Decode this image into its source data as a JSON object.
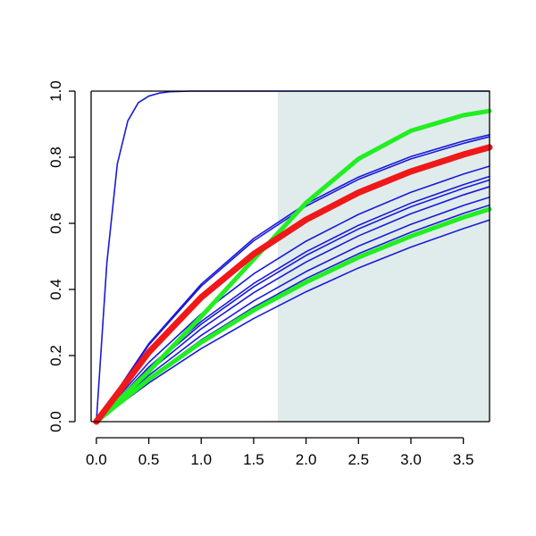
{
  "chart_data": {
    "type": "line",
    "title": "",
    "xlabel": "",
    "ylabel": "",
    "xlim": [
      -0.05,
      3.75
    ],
    "ylim": [
      0.0,
      1.0
    ],
    "x_ticks": [
      0.0,
      0.5,
      1.0,
      1.5,
      2.0,
      2.5,
      3.0,
      3.5
    ],
    "x_tick_labels": [
      "0.0",
      "0.5",
      "1.0",
      "1.5",
      "2.0",
      "2.5",
      "3.0",
      "3.5"
    ],
    "y_ticks": [
      0.0,
      0.2,
      0.4,
      0.6,
      0.8,
      1.0
    ],
    "y_tick_labels": [
      "0.0",
      "0.2",
      "0.4",
      "0.6",
      "0.8",
      "1.0"
    ],
    "grid": false,
    "shaded_region": {
      "x_from": 1.73,
      "x_to": 3.75,
      "color": "#e0ecec"
    },
    "colors": {
      "blue": "#1a1ad6",
      "red": "#f01818",
      "green": "#22ee22"
    },
    "series": [
      {
        "color": "blue",
        "kind": "thin",
        "x": [
          0,
          0.1,
          0.2,
          0.3,
          0.4,
          0.5,
          0.6,
          0.7,
          0.8,
          0.9,
          1.0,
          1.2,
          1.5,
          2.0,
          3.0,
          3.75
        ],
        "y": [
          0.0,
          0.48,
          0.78,
          0.91,
          0.965,
          0.985,
          0.994,
          0.998,
          0.999,
          1.0,
          1.0,
          1.0,
          1.0,
          1.0,
          1.0,
          1.0
        ]
      },
      {
        "color": "blue",
        "kind": "thin",
        "x": [
          0,
          0.5,
          1.0,
          1.5,
          2.0,
          2.5,
          3.0,
          3.5,
          3.75
        ],
        "y": [
          0.0,
          0.179,
          0.326,
          0.447,
          0.546,
          0.627,
          0.694,
          0.749,
          0.773
        ]
      },
      {
        "color": "blue",
        "kind": "thin",
        "x": [
          0,
          0.5,
          1.0,
          1.5,
          2.0,
          2.5,
          3.0,
          3.5,
          3.75
        ],
        "y": [
          0.0,
          0.21,
          0.376,
          0.507,
          0.611,
          0.693,
          0.757,
          0.808,
          0.83
        ]
      },
      {
        "color": "blue",
        "kind": "thin",
        "x": [
          0,
          0.5,
          1.0,
          1.5,
          2.0,
          2.5,
          3.0,
          3.5,
          3.75
        ],
        "y": [
          0.0,
          0.232,
          0.41,
          0.547,
          0.652,
          0.733,
          0.795,
          0.842,
          0.862
        ]
      },
      {
        "color": "blue",
        "kind": "thin",
        "x": [
          0,
          0.5,
          1.0,
          1.5,
          2.0,
          2.5,
          3.0,
          3.5,
          3.75
        ],
        "y": [
          0.0,
          0.236,
          0.416,
          0.554,
          0.659,
          0.74,
          0.802,
          0.849,
          0.868
        ]
      },
      {
        "color": "blue",
        "kind": "thin",
        "x": [
          0,
          0.5,
          1.0,
          1.5,
          2.0,
          2.5,
          3.0,
          3.5,
          3.75
        ],
        "y": [
          0.0,
          0.16,
          0.295,
          0.408,
          0.503,
          0.583,
          0.65,
          0.706,
          0.731
        ]
      },
      {
        "color": "blue",
        "kind": "thin",
        "x": [
          0,
          0.5,
          1.0,
          1.5,
          2.0,
          2.5,
          3.0,
          3.5,
          3.75
        ],
        "y": [
          0.0,
          0.165,
          0.303,
          0.418,
          0.514,
          0.594,
          0.661,
          0.717,
          0.742
        ]
      },
      {
        "color": "blue",
        "kind": "thin",
        "x": [
          0,
          0.5,
          1.0,
          1.5,
          2.0,
          2.5,
          3.0,
          3.5,
          3.75
        ],
        "y": [
          0.0,
          0.152,
          0.281,
          0.39,
          0.483,
          0.562,
          0.629,
          0.686,
          0.711
        ]
      },
      {
        "color": "blue",
        "kind": "thin",
        "x": [
          0,
          0.5,
          1.0,
          1.5,
          2.0,
          2.5,
          3.0,
          3.5,
          3.75
        ],
        "y": [
          0.0,
          0.14,
          0.261,
          0.365,
          0.454,
          0.531,
          0.597,
          0.654,
          0.679
        ]
      },
      {
        "color": "blue",
        "kind": "thin",
        "x": [
          0,
          0.5,
          1.0,
          1.5,
          2.0,
          2.5,
          3.0,
          3.5,
          3.75
        ],
        "y": [
          0.0,
          0.117,
          0.221,
          0.312,
          0.393,
          0.465,
          0.528,
          0.584,
          0.61
        ]
      },
      {
        "color": "blue",
        "kind": "thin",
        "x": [
          0,
          0.5,
          1.0,
          1.5,
          2.0,
          2.5,
          3.0,
          3.5,
          3.75
        ],
        "y": [
          0.0,
          0.132,
          0.247,
          0.346,
          0.433,
          0.508,
          0.573,
          0.63,
          0.655
        ]
      },
      {
        "color": "green",
        "kind": "thick",
        "x": [
          0,
          0.5,
          1.0,
          1.5,
          2.0,
          2.5,
          3.0,
          3.5,
          3.75
        ],
        "y": [
          0.0,
          0.152,
          0.318,
          0.491,
          0.662,
          0.795,
          0.88,
          0.927,
          0.94
        ]
      },
      {
        "color": "green",
        "kind": "thick",
        "x": [
          0,
          0.5,
          1.0,
          1.5,
          2.0,
          2.5,
          3.0,
          3.5,
          3.75
        ],
        "y": [
          0.0,
          0.128,
          0.24,
          0.337,
          0.422,
          0.497,
          0.561,
          0.618,
          0.643
        ]
      },
      {
        "color": "red",
        "kind": "heavy",
        "x": [
          0,
          0.5,
          1.0,
          1.5,
          2.0,
          2.5,
          3.0,
          3.5,
          3.75
        ],
        "y": [
          0.0,
          0.21,
          0.376,
          0.507,
          0.611,
          0.693,
          0.757,
          0.808,
          0.83
        ]
      }
    ]
  }
}
